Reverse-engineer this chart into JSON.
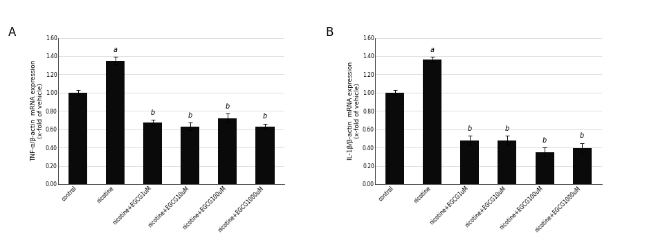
{
  "panel_A": {
    "title": "A",
    "ylabel": "TNF-α/β-actin  mRNA expression\n(x-fold of vehicle)",
    "categories": [
      "control",
      "nicotine",
      "nicotine+EGCG1uM",
      "nicotine+EGCG10uM",
      "nicotine+EGCG100uM",
      "nicotine+EGCG1000uM"
    ],
    "values": [
      1.0,
      1.35,
      0.67,
      0.63,
      0.72,
      0.63
    ],
    "errors": [
      0.03,
      0.04,
      0.03,
      0.04,
      0.05,
      0.03
    ],
    "annotations": [
      "",
      "a",
      "b",
      "b",
      "b",
      "b"
    ],
    "ylim": [
      0,
      1.6
    ],
    "yticks": [
      0.0,
      0.2,
      0.4,
      0.6,
      0.8,
      1.0,
      1.2,
      1.4,
      1.6
    ],
    "bar_color": "#0a0a0a",
    "bar_width": 0.5
  },
  "panel_B": {
    "title": "B",
    "ylabel": "IL-1β/β-actin  mRNA expression\n(x-fold of vehicle)",
    "categories": [
      "control",
      "nicotine",
      "nicotine+EGCG1uM",
      "nicotine+EGCG10uM",
      "nicotine+EGCG100uM",
      "nicotine+EGCG1000uM"
    ],
    "values": [
      1.0,
      1.36,
      0.48,
      0.48,
      0.35,
      0.39
    ],
    "errors": [
      0.03,
      0.03,
      0.05,
      0.05,
      0.05,
      0.06
    ],
    "annotations": [
      "",
      "a",
      "b",
      "b",
      "b",
      "b"
    ],
    "ylim": [
      0,
      1.6
    ],
    "yticks": [
      0.0,
      0.2,
      0.4,
      0.6,
      0.8,
      1.0,
      1.2,
      1.4,
      1.6
    ],
    "bar_color": "#0a0a0a",
    "bar_width": 0.5
  },
  "fig_width": 9.35,
  "fig_height": 3.41,
  "dpi": 100,
  "background_color": "#ffffff",
  "grid_color": "#d8d8d8",
  "annotation_fontsize": 7,
  "tick_label_fontsize": 5.5,
  "ylabel_fontsize": 6.5,
  "panel_label_fontsize": 12
}
